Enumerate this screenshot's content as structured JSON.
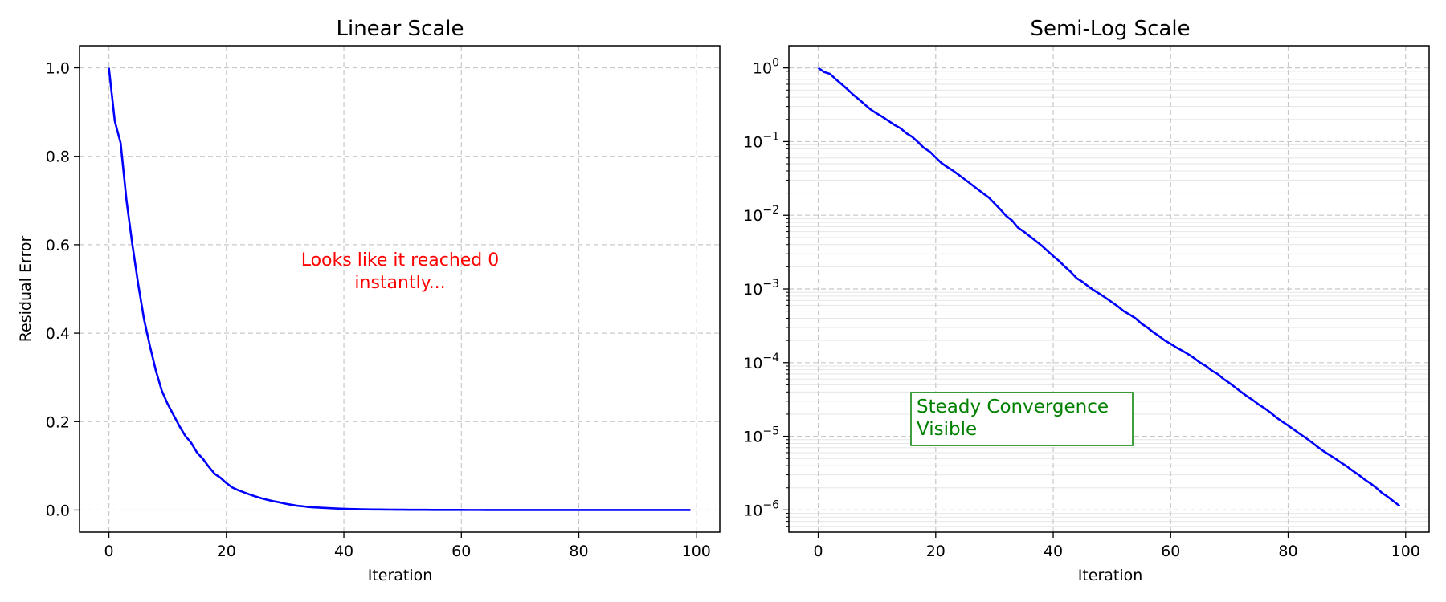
{
  "chart_data": [
    {
      "type": "line",
      "title": "Linear Scale",
      "xlabel": "Iteration",
      "ylabel": "Residual Error",
      "xlim": [
        -5,
        104
      ],
      "ylim": [
        -0.05,
        1.05
      ],
      "xticks": [
        0,
        20,
        40,
        60,
        80,
        100
      ],
      "xtick_labels": [
        "0",
        "20",
        "40",
        "60",
        "80",
        "100"
      ],
      "yticks": [
        0.0,
        0.2,
        0.4,
        0.6,
        0.8,
        1.0
      ],
      "ytick_labels": [
        "0.0",
        "0.2",
        "0.4",
        "0.6",
        "0.8",
        "1.0"
      ],
      "yscale": "linear",
      "grid": true,
      "annotation": {
        "text": [
          "Looks like it reached 0",
          "instantly..."
        ],
        "x": 49,
        "y": 0.56,
        "color": "#ff0000"
      },
      "series": [
        {
          "color": "#0000ff",
          "x_start": 0,
          "x_step": 1
        }
      ]
    },
    {
      "type": "line",
      "title": "Semi-Log Scale",
      "xlabel": "Iteration",
      "ylabel": "",
      "xlim": [
        -5,
        104
      ],
      "ylim": [
        5e-07,
        2
      ],
      "xticks": [
        0,
        20,
        40,
        60,
        80,
        100
      ],
      "xtick_labels": [
        "0",
        "20",
        "40",
        "60",
        "80",
        "100"
      ],
      "yticks": [
        1e-06,
        1e-05,
        0.0001,
        0.001,
        0.01,
        0.1,
        1
      ],
      "ytick_bases": [
        "10",
        "10",
        "10",
        "10",
        "10",
        "10",
        "10"
      ],
      "ytick_exponents": [
        "−6",
        "−5",
        "−4",
        "−3",
        "−2",
        "−1",
        "0"
      ],
      "yscale": "log",
      "grid": true,
      "annotation": {
        "text": [
          "Steady Convergence",
          "Visible"
        ],
        "x": 17,
        "y": 2.2e-05,
        "color": "#008000",
        "boxed": true
      },
      "series": [
        {
          "color": "#0000ff",
          "x_start": 0,
          "x_step": 1
        }
      ]
    }
  ],
  "residuals": [
    1.0,
    0.88,
    0.83,
    0.7,
    0.6,
    0.51,
    0.43,
    0.37,
    0.315,
    0.27,
    0.24,
    0.215,
    0.19,
    0.168,
    0.152,
    0.13,
    0.116,
    0.098,
    0.082,
    0.073,
    0.061,
    0.051,
    0.045,
    0.04,
    0.035,
    0.0305,
    0.0265,
    0.023,
    0.02,
    0.0175,
    0.0145,
    0.012,
    0.0098,
    0.0085,
    0.0068,
    0.006,
    0.0052,
    0.0045,
    0.0039,
    0.0033,
    0.0028,
    0.0024,
    0.002,
    0.0017,
    0.0014,
    0.00125,
    0.00108,
    0.00095,
    0.00085,
    0.00075,
    0.00066,
    0.00058,
    0.0005,
    0.00045,
    0.0004,
    0.00034,
    0.0003,
    0.00026,
    0.00023,
    0.0002,
    0.00018,
    0.00016,
    0.000145,
    0.00013,
    0.000115,
    0.0001,
    9e-05,
    7.8e-05,
    7e-05,
    6e-05,
    5.3e-05,
    4.6e-05,
    4e-05,
    3.5e-05,
    3.1e-05,
    2.7e-05,
    2.4e-05,
    2.1e-05,
    1.8e-05,
    1.58e-05,
    1.4e-05,
    1.23e-05,
    1.08e-05,
    9.5e-06,
    8.3e-06,
    7.2e-06,
    6.3e-06,
    5.6e-06,
    5e-06,
    4.4e-06,
    3.9e-06,
    3.4e-06,
    3e-06,
    2.6e-06,
    2.3e-06,
    2e-06,
    1.7e-06,
    1.5e-06,
    1.3e-06,
    1.13e-06
  ]
}
